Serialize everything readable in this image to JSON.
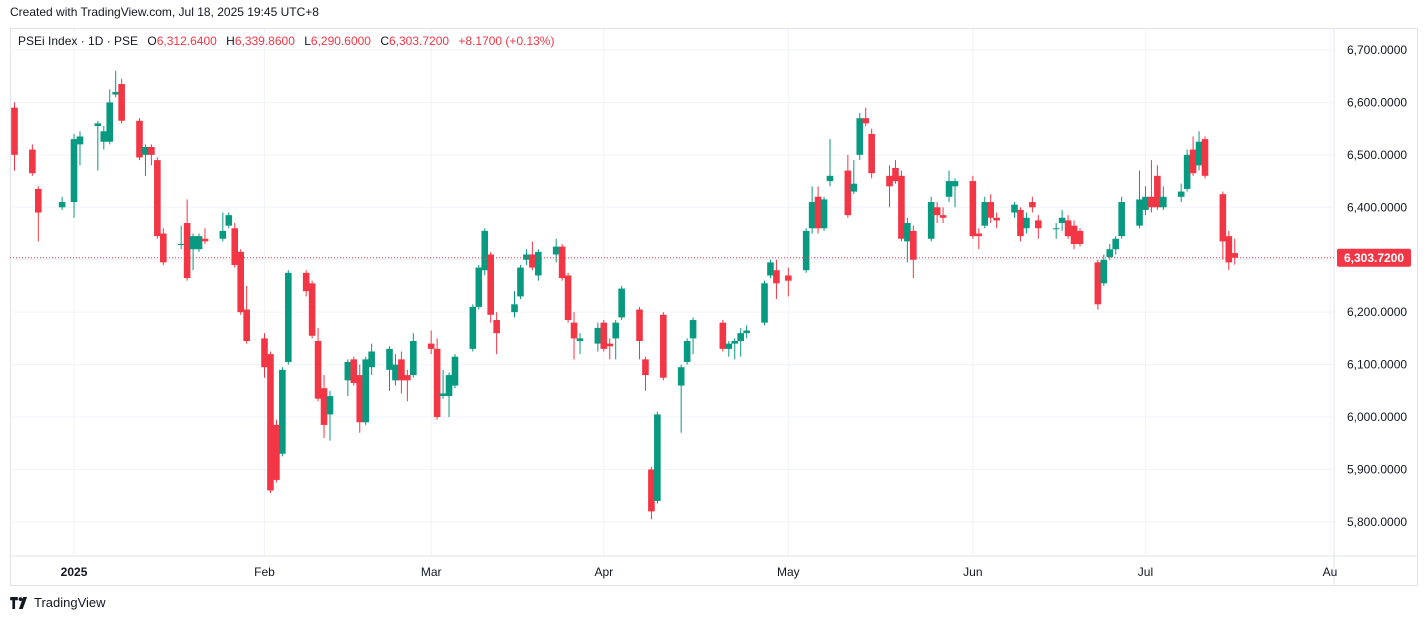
{
  "header": {
    "created_text": "Created with TradingView.com, Jul 18, 2025 19:45 UTC+8"
  },
  "legend": {
    "symbol": "PSEi Index · 1D · PSE",
    "open_label": "O",
    "open": "6,312.6400",
    "high_label": "H",
    "high": "6,339.8600",
    "low_label": "L",
    "low": "6,290.6000",
    "close_label": "C",
    "close": "6,303.7200",
    "change": "+8.1700 (+0.13%)"
  },
  "footer": {
    "brand": "TradingView",
    "logo_icon": "tradingview-logo-icon"
  },
  "colors": {
    "up": "#089981",
    "down": "#f23645",
    "grid": "#f0f3fa",
    "axis_text": "#131722"
  },
  "chart_data": {
    "type": "candlestick",
    "title": "PSEi Index · 1D · PSE",
    "ylim": [
      5735,
      6740
    ],
    "y_ticks": [
      5800,
      5900,
      6000,
      6100,
      6200,
      6300,
      6400,
      6500,
      6600,
      6700
    ],
    "y_tick_labels": [
      "5,800.0000",
      "5,900.0000",
      "6,000.0000",
      "6,100.0000",
      "6,200.0000",
      "6,300.0000",
      "6,400.0000",
      "6,500.0000",
      "6,600.0000",
      "6,700.0000"
    ],
    "x_labels": [
      {
        "label": "2025",
        "date": "2025-01-02"
      },
      {
        "label": "Feb",
        "date": "2025-02-03"
      },
      {
        "label": "Mar",
        "date": "2025-03-03"
      },
      {
        "label": "Apr",
        "date": "2025-04-01"
      },
      {
        "label": "May",
        "date": "2025-05-02"
      },
      {
        "label": "Jun",
        "date": "2025-06-02"
      },
      {
        "label": "Jul",
        "date": "2025-07-01"
      },
      {
        "label": "Au",
        "date": "2025-08-01"
      }
    ],
    "last_price": 6303.72,
    "last_price_label": "6,303.7200",
    "candles": [
      {
        "date": "2024-12-23",
        "o": 6590,
        "h": 6600,
        "l": 6470,
        "c": 6500
      },
      {
        "date": "2024-12-26",
        "o": 6510,
        "h": 6520,
        "l": 6460,
        "c": 6465
      },
      {
        "date": "2024-12-27",
        "o": 6435,
        "h": 6440,
        "l": 6335,
        "c": 6390
      },
      {
        "date": "2024-12-31",
        "o": 6400,
        "h": 6420,
        "l": 6395,
        "c": 6410
      },
      {
        "date": "2025-01-02",
        "o": 6410,
        "h": 6540,
        "l": 6380,
        "c": 6530
      },
      {
        "date": "2025-01-03",
        "o": 6520,
        "h": 6545,
        "l": 6480,
        "c": 6535
      },
      {
        "date": "2025-01-06",
        "o": 6555,
        "h": 6565,
        "l": 6470,
        "c": 6560
      },
      {
        "date": "2025-01-07",
        "o": 6525,
        "h": 6555,
        "l": 6510,
        "c": 6545
      },
      {
        "date": "2025-01-08",
        "o": 6525,
        "h": 6625,
        "l": 6520,
        "c": 6600
      },
      {
        "date": "2025-01-09",
        "o": 6615,
        "h": 6660,
        "l": 6610,
        "c": 6620
      },
      {
        "date": "2025-01-10",
        "o": 6635,
        "h": 6645,
        "l": 6560,
        "c": 6565
      },
      {
        "date": "2025-01-13",
        "o": 6565,
        "h": 6570,
        "l": 6490,
        "c": 6495
      },
      {
        "date": "2025-01-14",
        "o": 6500,
        "h": 6520,
        "l": 6460,
        "c": 6515
      },
      {
        "date": "2025-01-15",
        "o": 6515,
        "h": 6520,
        "l": 6480,
        "c": 6500
      },
      {
        "date": "2025-01-16",
        "o": 6490,
        "h": 6495,
        "l": 6340,
        "c": 6345
      },
      {
        "date": "2025-01-17",
        "o": 6350,
        "h": 6360,
        "l": 6290,
        "c": 6295
      },
      {
        "date": "2025-01-20",
        "o": 6330,
        "h": 6365,
        "l": 6320,
        "c": 6330
      },
      {
        "date": "2025-01-21",
        "o": 6370,
        "h": 6415,
        "l": 6260,
        "c": 6265
      },
      {
        "date": "2025-01-22",
        "o": 6320,
        "h": 6350,
        "l": 6280,
        "c": 6345
      },
      {
        "date": "2025-01-23",
        "o": 6320,
        "h": 6350,
        "l": 6315,
        "c": 6345
      },
      {
        "date": "2025-01-24",
        "o": 6340,
        "h": 6360,
        "l": 6330,
        "c": 6335
      },
      {
        "date": "2025-01-27",
        "o": 6340,
        "h": 6390,
        "l": 6335,
        "c": 6355
      },
      {
        "date": "2025-01-28",
        "o": 6365,
        "h": 6390,
        "l": 6360,
        "c": 6385
      },
      {
        "date": "2025-01-29",
        "o": 6360,
        "h": 6370,
        "l": 6285,
        "c": 6290
      },
      {
        "date": "2025-01-30",
        "o": 6315,
        "h": 6320,
        "l": 6195,
        "c": 6200
      },
      {
        "date": "2025-01-31",
        "o": 6205,
        "h": 6250,
        "l": 6140,
        "c": 6145
      },
      {
        "date": "2025-02-03",
        "o": 6150,
        "h": 6160,
        "l": 6075,
        "c": 6095
      },
      {
        "date": "2025-02-04",
        "o": 6120,
        "h": 6125,
        "l": 5855,
        "c": 5860
      },
      {
        "date": "2025-02-05",
        "o": 5985,
        "h": 5995,
        "l": 5875,
        "c": 5880
      },
      {
        "date": "2025-02-06",
        "o": 5930,
        "h": 6095,
        "l": 5925,
        "c": 6090
      },
      {
        "date": "2025-02-07",
        "o": 6105,
        "h": 6280,
        "l": 6100,
        "c": 6275
      },
      {
        "date": "2025-02-10",
        "o": 6275,
        "h": 6280,
        "l": 6230,
        "c": 6240
      },
      {
        "date": "2025-02-11",
        "o": 6255,
        "h": 6260,
        "l": 6150,
        "c": 6155
      },
      {
        "date": "2025-02-12",
        "o": 6145,
        "h": 6170,
        "l": 6030,
        "c": 6035
      },
      {
        "date": "2025-02-13",
        "o": 6055,
        "h": 6080,
        "l": 5960,
        "c": 5985
      },
      {
        "date": "2025-02-14",
        "o": 6005,
        "h": 6050,
        "l": 5955,
        "c": 6040
      },
      {
        "date": "2025-02-17",
        "o": 6070,
        "h": 6110,
        "l": 6040,
        "c": 6105
      },
      {
        "date": "2025-02-18",
        "o": 6110,
        "h": 6115,
        "l": 6060,
        "c": 6065
      },
      {
        "date": "2025-02-19",
        "o": 6080,
        "h": 6100,
        "l": 5970,
        "c": 5990
      },
      {
        "date": "2025-02-20",
        "o": 5990,
        "h": 6115,
        "l": 5985,
        "c": 6110
      },
      {
        "date": "2025-02-21",
        "o": 6095,
        "h": 6140,
        "l": 6080,
        "c": 6125
      },
      {
        "date": "2025-02-24",
        "o": 6090,
        "h": 6135,
        "l": 6050,
        "c": 6130
      },
      {
        "date": "2025-02-25",
        "o": 6070,
        "h": 6120,
        "l": 6060,
        "c": 6100
      },
      {
        "date": "2025-02-26",
        "o": 6110,
        "h": 6125,
        "l": 6045,
        "c": 6070
      },
      {
        "date": "2025-02-27",
        "o": 6080,
        "h": 6090,
        "l": 6030,
        "c": 6070
      },
      {
        "date": "2025-02-28",
        "o": 6080,
        "h": 6160,
        "l": 6075,
        "c": 6145
      },
      {
        "date": "2025-03-03",
        "o": 6140,
        "h": 6165,
        "l": 6120,
        "c": 6130
      },
      {
        "date": "2025-03-04",
        "o": 6130,
        "h": 6150,
        "l": 5995,
        "c": 6000
      },
      {
        "date": "2025-03-05",
        "o": 6040,
        "h": 6090,
        "l": 6035,
        "c": 6045
      },
      {
        "date": "2025-03-06",
        "o": 6040,
        "h": 6085,
        "l": 6000,
        "c": 6080
      },
      {
        "date": "2025-03-07",
        "o": 6060,
        "h": 6120,
        "l": 6055,
        "c": 6115
      },
      {
        "date": "2025-03-10",
        "o": 6130,
        "h": 6215,
        "l": 6125,
        "c": 6210
      },
      {
        "date": "2025-03-11",
        "o": 6210,
        "h": 6290,
        "l": 6205,
        "c": 6285
      },
      {
        "date": "2025-03-12",
        "o": 6280,
        "h": 6360,
        "l": 6270,
        "c": 6355
      },
      {
        "date": "2025-03-13",
        "o": 6310,
        "h": 6315,
        "l": 6180,
        "c": 6195
      },
      {
        "date": "2025-03-14",
        "o": 6185,
        "h": 6200,
        "l": 6120,
        "c": 6160
      },
      {
        "date": "2025-03-17",
        "o": 6200,
        "h": 6240,
        "l": 6190,
        "c": 6215
      },
      {
        "date": "2025-03-18",
        "o": 6230,
        "h": 6290,
        "l": 6225,
        "c": 6285
      },
      {
        "date": "2025-03-19",
        "o": 6300,
        "h": 6320,
        "l": 6290,
        "c": 6310
      },
      {
        "date": "2025-03-20",
        "o": 6310,
        "h": 6335,
        "l": 6280,
        "c": 6285
      },
      {
        "date": "2025-03-21",
        "o": 6270,
        "h": 6320,
        "l": 6260,
        "c": 6315
      },
      {
        "date": "2025-03-24",
        "o": 6310,
        "h": 6340,
        "l": 6295,
        "c": 6325
      },
      {
        "date": "2025-03-25",
        "o": 6325,
        "h": 6330,
        "l": 6260,
        "c": 6265
      },
      {
        "date": "2025-03-26",
        "o": 6270,
        "h": 6275,
        "l": 6180,
        "c": 6185
      },
      {
        "date": "2025-03-27",
        "o": 6180,
        "h": 6200,
        "l": 6110,
        "c": 6150
      },
      {
        "date": "2025-03-28",
        "o": 6145,
        "h": 6160,
        "l": 6120,
        "c": 6150
      },
      {
        "date": "2025-03-31",
        "o": 6140,
        "h": 6180,
        "l": 6125,
        "c": 6170
      },
      {
        "date": "2025-04-01",
        "o": 6180,
        "h": 6185,
        "l": 6125,
        "c": 6130
      },
      {
        "date": "2025-04-02",
        "o": 6140,
        "h": 6150,
        "l": 6110,
        "c": 6135
      },
      {
        "date": "2025-04-03",
        "o": 6150,
        "h": 6185,
        "l": 6110,
        "c": 6180
      },
      {
        "date": "2025-04-04",
        "o": 6190,
        "h": 6250,
        "l": 6185,
        "c": 6245
      },
      {
        "date": "2025-04-07",
        "o": 6205,
        "h": 6210,
        "l": 6110,
        "c": 6145
      },
      {
        "date": "2025-04-08",
        "o": 6110,
        "h": 6115,
        "l": 6050,
        "c": 6080
      },
      {
        "date": "2025-04-09",
        "o": 5900,
        "h": 5905,
        "l": 5805,
        "c": 5820
      },
      {
        "date": "2025-04-10",
        "o": 5840,
        "h": 6010,
        "l": 5835,
        "c": 6005
      },
      {
        "date": "2025-04-11",
        "o": 6195,
        "h": 6200,
        "l": 6070,
        "c": 6075
      },
      {
        "date": "2025-04-14",
        "o": 6060,
        "h": 6100,
        "l": 5970,
        "c": 6095
      },
      {
        "date": "2025-04-15",
        "o": 6105,
        "h": 6150,
        "l": 6100,
        "c": 6145
      },
      {
        "date": "2025-04-16",
        "o": 6150,
        "h": 6190,
        "l": 6120,
        "c": 6185
      },
      {
        "date": "2025-04-21",
        "o": 6180,
        "h": 6185,
        "l": 6125,
        "c": 6130
      },
      {
        "date": "2025-04-22",
        "o": 6130,
        "h": 6145,
        "l": 6115,
        "c": 6140
      },
      {
        "date": "2025-04-23",
        "o": 6140,
        "h": 6150,
        "l": 6110,
        "c": 6145
      },
      {
        "date": "2025-04-24",
        "o": 6145,
        "h": 6170,
        "l": 6115,
        "c": 6160
      },
      {
        "date": "2025-04-25",
        "o": 6160,
        "h": 6175,
        "l": 6150,
        "c": 6165
      },
      {
        "date": "2025-04-28",
        "o": 6180,
        "h": 6260,
        "l": 6175,
        "c": 6255
      },
      {
        "date": "2025-04-29",
        "o": 6270,
        "h": 6300,
        "l": 6265,
        "c": 6295
      },
      {
        "date": "2025-04-30",
        "o": 6280,
        "h": 6300,
        "l": 6225,
        "c": 6255
      },
      {
        "date": "2025-05-02",
        "o": 6270,
        "h": 6285,
        "l": 6230,
        "c": 6260
      },
      {
        "date": "2025-05-05",
        "o": 6280,
        "h": 6360,
        "l": 6275,
        "c": 6355
      },
      {
        "date": "2025-05-06",
        "o": 6360,
        "h": 6440,
        "l": 6350,
        "c": 6410
      },
      {
        "date": "2025-05-07",
        "o": 6420,
        "h": 6440,
        "l": 6350,
        "c": 6360
      },
      {
        "date": "2025-05-08",
        "o": 6360,
        "h": 6420,
        "l": 6355,
        "c": 6415
      },
      {
        "date": "2025-05-09",
        "o": 6450,
        "h": 6530,
        "l": 6440,
        "c": 6460
      },
      {
        "date": "2025-05-12",
        "o": 6470,
        "h": 6500,
        "l": 6380,
        "c": 6385
      },
      {
        "date": "2025-05-13",
        "o": 6430,
        "h": 6490,
        "l": 6425,
        "c": 6445
      },
      {
        "date": "2025-05-14",
        "o": 6500,
        "h": 6580,
        "l": 6490,
        "c": 6570
      },
      {
        "date": "2025-05-15",
        "o": 6570,
        "h": 6590,
        "l": 6555,
        "c": 6560
      },
      {
        "date": "2025-05-16",
        "o": 6540,
        "h": 6550,
        "l": 6455,
        "c": 6465
      },
      {
        "date": "2025-05-19",
        "o": 6460,
        "h": 6480,
        "l": 6400,
        "c": 6440
      },
      {
        "date": "2025-05-20",
        "o": 6475,
        "h": 6490,
        "l": 6445,
        "c": 6450
      },
      {
        "date": "2025-05-21",
        "o": 6460,
        "h": 6470,
        "l": 6335,
        "c": 6340
      },
      {
        "date": "2025-05-22",
        "o": 6335,
        "h": 6380,
        "l": 6295,
        "c": 6370
      },
      {
        "date": "2025-05-23",
        "o": 6355,
        "h": 6365,
        "l": 6265,
        "c": 6300
      },
      {
        "date": "2025-05-26",
        "o": 6340,
        "h": 6420,
        "l": 6335,
        "c": 6410
      },
      {
        "date": "2025-05-27",
        "o": 6400,
        "h": 6410,
        "l": 6370,
        "c": 6385
      },
      {
        "date": "2025-05-28",
        "o": 6385,
        "h": 6400,
        "l": 6370,
        "c": 6380
      },
      {
        "date": "2025-05-29",
        "o": 6420,
        "h": 6470,
        "l": 6410,
        "c": 6450
      },
      {
        "date": "2025-05-30",
        "o": 6440,
        "h": 6455,
        "l": 6400,
        "c": 6450
      },
      {
        "date": "2025-06-02",
        "o": 6450,
        "h": 6460,
        "l": 6340,
        "c": 6345
      },
      {
        "date": "2025-06-03",
        "o": 6350,
        "h": 6360,
        "l": 6320,
        "c": 6345
      },
      {
        "date": "2025-06-04",
        "o": 6365,
        "h": 6420,
        "l": 6360,
        "c": 6410
      },
      {
        "date": "2025-06-05",
        "o": 6410,
        "h": 6425,
        "l": 6370,
        "c": 6380
      },
      {
        "date": "2025-06-06",
        "o": 6380,
        "h": 6390,
        "l": 6360,
        "c": 6375
      },
      {
        "date": "2025-06-09",
        "o": 6390,
        "h": 6410,
        "l": 6380,
        "c": 6405
      },
      {
        "date": "2025-06-10",
        "o": 6395,
        "h": 6400,
        "l": 6335,
        "c": 6345
      },
      {
        "date": "2025-06-11",
        "o": 6360,
        "h": 6390,
        "l": 6350,
        "c": 6380
      },
      {
        "date": "2025-06-12",
        "o": 6410,
        "h": 6420,
        "l": 6390,
        "c": 6400
      },
      {
        "date": "2025-06-13",
        "o": 6375,
        "h": 6385,
        "l": 6340,
        "c": 6360
      },
      {
        "date": "2025-06-16",
        "o": 6360,
        "h": 6370,
        "l": 6340,
        "c": 6360
      },
      {
        "date": "2025-06-17",
        "o": 6370,
        "h": 6395,
        "l": 6355,
        "c": 6380
      },
      {
        "date": "2025-06-18",
        "o": 6375,
        "h": 6385,
        "l": 6340,
        "c": 6345
      },
      {
        "date": "2025-06-19",
        "o": 6365,
        "h": 6375,
        "l": 6320,
        "c": 6330
      },
      {
        "date": "2025-06-20",
        "o": 6355,
        "h": 6360,
        "l": 6325,
        "c": 6330
      },
      {
        "date": "2025-06-23",
        "o": 6295,
        "h": 6300,
        "l": 6205,
        "c": 6215
      },
      {
        "date": "2025-06-24",
        "o": 6255,
        "h": 6310,
        "l": 6250,
        "c": 6300
      },
      {
        "date": "2025-06-25",
        "o": 6305,
        "h": 6330,
        "l": 6300,
        "c": 6320
      },
      {
        "date": "2025-06-26",
        "o": 6320,
        "h": 6345,
        "l": 6310,
        "c": 6340
      },
      {
        "date": "2025-06-27",
        "o": 6345,
        "h": 6420,
        "l": 6340,
        "c": 6410
      },
      {
        "date": "2025-06-30",
        "o": 6365,
        "h": 6470,
        "l": 6360,
        "c": 6415
      },
      {
        "date": "2025-07-01",
        "o": 6395,
        "h": 6440,
        "l": 6385,
        "c": 6420
      },
      {
        "date": "2025-07-02",
        "o": 6420,
        "h": 6490,
        "l": 6390,
        "c": 6400
      },
      {
        "date": "2025-07-03",
        "o": 6460,
        "h": 6480,
        "l": 6395,
        "c": 6400
      },
      {
        "date": "2025-07-04",
        "o": 6400,
        "h": 6440,
        "l": 6395,
        "c": 6420
      },
      {
        "date": "2025-07-07",
        "o": 6420,
        "h": 6445,
        "l": 6410,
        "c": 6430
      },
      {
        "date": "2025-07-08",
        "o": 6435,
        "h": 6510,
        "l": 6430,
        "c": 6500
      },
      {
        "date": "2025-07-09",
        "o": 6510,
        "h": 6535,
        "l": 6460,
        "c": 6465
      },
      {
        "date": "2025-07-10",
        "o": 6480,
        "h": 6545,
        "l": 6470,
        "c": 6525
      },
      {
        "date": "2025-07-11",
        "o": 6530,
        "h": 6535,
        "l": 6455,
        "c": 6460
      },
      {
        "date": "2025-07-14",
        "o": 6425,
        "h": 6430,
        "l": 6300,
        "c": 6335
      },
      {
        "date": "2025-07-15",
        "o": 6345,
        "h": 6355,
        "l": 6280,
        "c": 6295
      },
      {
        "date": "2025-07-16",
        "o": 6312.64,
        "h": 6339.86,
        "l": 6290.6,
        "c": 6303.72
      }
    ]
  }
}
